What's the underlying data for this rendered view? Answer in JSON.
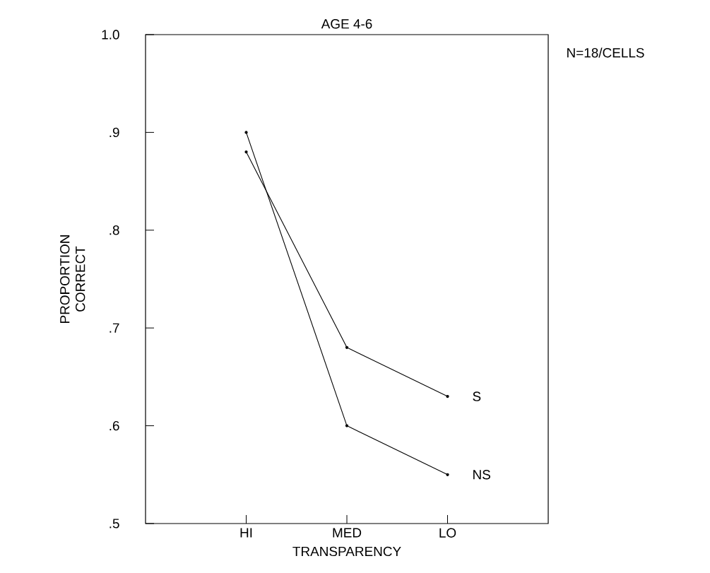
{
  "chart_data": {
    "type": "line",
    "title": "AGE 4-6",
    "xlabel": "TRANSPARENCY",
    "ylabel": "PROPORTION CORRECT",
    "annotations": [
      "N=18/CELLS"
    ],
    "categories": [
      "HI",
      "MED",
      "LO"
    ],
    "series": [
      {
        "name": "S",
        "color": "#000000",
        "values": [
          0.88,
          0.68,
          0.63
        ]
      },
      {
        "name": "NS",
        "color": "#000000",
        "values": [
          0.9,
          0.6,
          0.55
        ]
      }
    ],
    "ylim": [
      0.5,
      1.0
    ],
    "yticks": [
      {
        "value": 0.5,
        "label": ".5"
      },
      {
        "value": 0.6,
        "label": ".6"
      },
      {
        "value": 0.7,
        "label": ".7"
      },
      {
        "value": 0.8,
        "label": ".8"
      },
      {
        "value": 0.9,
        "label": ".9"
      },
      {
        "value": 1.0,
        "label": "1.0"
      }
    ],
    "grid": false,
    "legend": false,
    "marker": "circle",
    "line_style": "solid"
  }
}
